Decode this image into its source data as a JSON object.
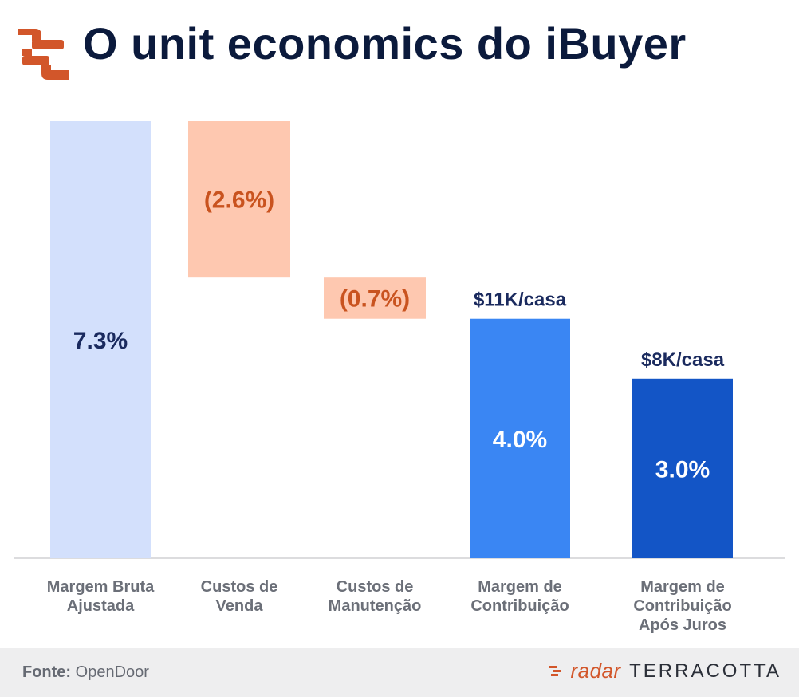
{
  "header": {
    "title": "O unit economics do iBuyer",
    "logo_icon": "terracotta-logo-icon"
  },
  "chart_data": {
    "type": "bar",
    "subtype": "waterfall",
    "title": "O unit economics do iBuyer",
    "categories": [
      [
        "Margem Bruta",
        "Ajustada"
      ],
      [
        "Custos de",
        "Venda"
      ],
      [
        "Custos de",
        "Manutenção"
      ],
      [
        "Margem de",
        "Contribuição"
      ],
      [
        "Margem de",
        "Contribuição",
        "Após Juros"
      ]
    ],
    "values": [
      7.3,
      -2.6,
      -0.7,
      4.0,
      3.0
    ],
    "value_labels": [
      "7.3%",
      "(2.6%)",
      "(0.7%)",
      "4.0%",
      "3.0%"
    ],
    "bar_kinds": [
      "total",
      "decrease",
      "decrease",
      "total",
      "total"
    ],
    "top_labels": [
      "",
      "",
      "",
      "$11K/casa",
      "$8K/casa"
    ],
    "ylim": [
      0,
      7.3
    ],
    "grid": false,
    "legend": "none",
    "colors": {
      "total_1": "#d3e0fc",
      "decrease": "#fec8b0",
      "total_4": "#3a86f3",
      "total_5": "#1355c6",
      "dark_label": "#1a2a5e",
      "orange_label": "#c9531f",
      "white_label": "#ffffff",
      "axis_label": "#6b6f78",
      "baseline": "#d0d0d4"
    }
  },
  "footer": {
    "source_label": "Fonte:",
    "source_value": "OpenDoor",
    "brand_name": "radar",
    "brand_suffix": "TERRACOTTA"
  }
}
